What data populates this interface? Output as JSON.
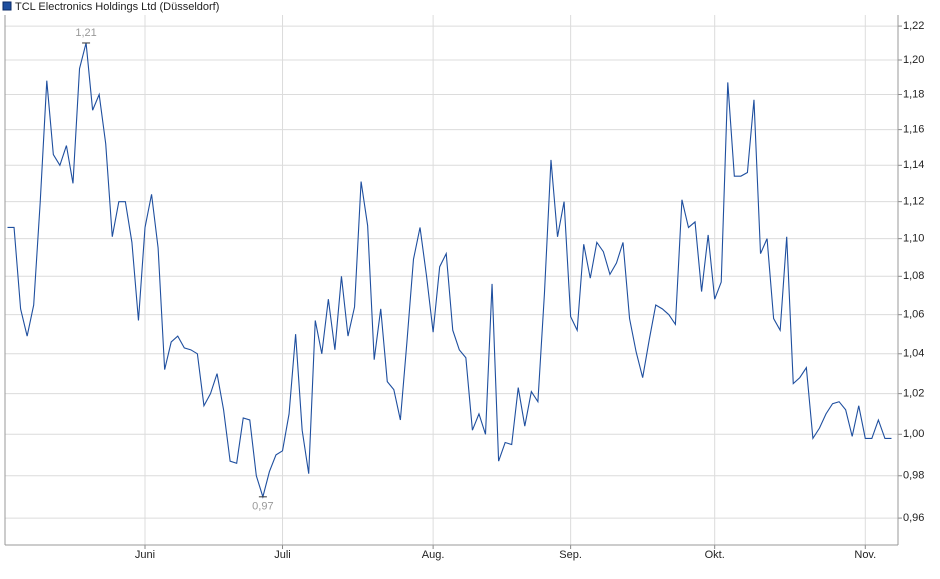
{
  "chart_data": {
    "type": "line",
    "legend_label": "TCL Electronics Holdings Ltd (Düsseldorf)",
    "log_scale": true,
    "grid": true,
    "legend_position": "top-left",
    "categories": [
      null,
      null,
      null,
      null,
      null,
      null,
      null,
      null,
      null,
      null,
      null,
      null,
      null,
      null,
      null,
      null,
      null,
      null,
      null,
      null,
      null,
      "Juni",
      null,
      null,
      null,
      null,
      null,
      null,
      null,
      null,
      null,
      null,
      null,
      null,
      null,
      null,
      null,
      null,
      null,
      null,
      null,
      null,
      "Juli",
      null,
      null,
      null,
      null,
      null,
      null,
      null,
      null,
      null,
      null,
      null,
      null,
      null,
      null,
      null,
      null,
      null,
      null,
      null,
      null,
      null,
      null,
      "Aug.",
      null,
      null,
      null,
      null,
      null,
      null,
      null,
      null,
      null,
      null,
      null,
      null,
      null,
      null,
      null,
      null,
      null,
      null,
      null,
      null,
      "Sep.",
      null,
      null,
      null,
      null,
      null,
      null,
      null,
      null,
      null,
      null,
      null,
      null,
      null,
      null,
      null,
      null,
      null,
      null,
      null,
      null,
      null,
      "Okt.",
      null,
      null,
      null,
      null,
      null,
      null,
      null,
      null,
      null,
      null,
      null,
      null,
      null,
      null,
      null,
      null,
      null,
      null,
      null,
      null,
      null,
      null,
      "Nov.",
      null,
      null,
      null,
      null
    ],
    "series": [
      {
        "color": "#1f4f9f",
        "values": [
          1.106,
          1.106,
          1.063,
          1.049,
          1.065,
          1.12,
          1.188,
          1.146,
          1.14,
          1.151,
          1.13,
          1.195,
          1.21,
          1.171,
          1.18,
          1.152,
          1.101,
          1.12,
          1.12,
          1.098,
          1.057,
          1.106,
          1.124,
          1.095,
          1.032,
          1.046,
          1.049,
          1.043,
          1.042,
          1.04,
          1.014,
          1.02,
          1.03,
          1.012,
          0.987,
          0.986,
          1.008,
          1.007,
          0.98,
          0.97,
          0.982,
          0.99,
          0.992,
          1.01,
          1.05,
          1.002,
          0.981,
          1.057,
          1.04,
          1.068,
          1.042,
          1.08,
          1.049,
          1.064,
          1.131,
          1.107,
          1.037,
          1.063,
          1.026,
          1.022,
          1.007,
          1.046,
          1.089,
          1.106,
          1.08,
          1.051,
          1.085,
          1.092,
          1.052,
          1.042,
          1.038,
          1.002,
          1.01,
          1.0,
          1.076,
          0.987,
          0.996,
          0.995,
          1.023,
          1.004,
          1.021,
          1.016,
          1.071,
          1.143,
          1.101,
          1.12,
          1.059,
          1.052,
          1.097,
          1.079,
          1.098,
          1.093,
          1.081,
          1.087,
          1.098,
          1.058,
          1.041,
          1.028,
          1.047,
          1.065,
          1.063,
          1.06,
          1.055,
          1.121,
          1.106,
          1.109,
          1.072,
          1.102,
          1.068,
          1.077,
          1.187,
          1.134,
          1.134,
          1.136,
          1.177,
          1.092,
          1.1,
          1.058,
          1.052,
          1.101,
          1.025,
          1.028,
          1.033,
          0.998,
          1.003,
          1.01,
          1.015,
          1.016,
          1.012,
          0.999,
          1.014,
          0.998,
          0.998,
          1.007,
          0.998,
          0.998
        ],
        "value_labels": [
          null,
          null,
          null,
          null,
          null,
          null,
          null,
          null,
          null,
          null,
          null,
          null,
          "1,21",
          null,
          null,
          null,
          null,
          null,
          null,
          null,
          null,
          null,
          null,
          null,
          null,
          null,
          null,
          null,
          null,
          null,
          null,
          null,
          null,
          null,
          null,
          null,
          null,
          null,
          null,
          "0,97",
          null,
          null,
          null,
          null,
          null,
          null,
          null,
          null,
          null,
          null,
          null,
          null,
          null,
          null,
          null,
          null,
          null,
          null,
          null,
          null,
          null,
          null,
          null,
          null,
          null,
          null,
          null,
          null,
          null,
          null,
          null,
          null,
          null,
          null,
          null,
          null,
          null,
          null,
          null,
          null,
          null,
          null,
          null,
          null,
          null,
          null,
          null,
          null,
          null,
          null,
          null,
          null,
          null,
          null,
          null,
          null,
          null,
          null,
          null,
          null,
          null,
          null,
          null,
          null,
          null,
          null,
          null,
          null,
          null,
          null,
          null,
          null,
          null,
          null,
          null,
          null,
          null,
          null,
          null,
          null,
          null,
          null,
          null,
          null,
          null,
          null,
          null,
          null,
          null,
          null,
          null,
          null,
          null,
          null,
          null,
          null
        ]
      }
    ],
    "ylim": [
      0.9475,
      1.2266
    ],
    "yticks": [
      {
        "value": 0.96,
        "label": "0,96"
      },
      {
        "value": 0.98,
        "label": "0,98"
      },
      {
        "value": 1.0,
        "label": "1,00"
      },
      {
        "value": 1.02,
        "label": "1,02"
      },
      {
        "value": 1.04,
        "label": "1,04"
      },
      {
        "value": 1.06,
        "label": "1,06"
      },
      {
        "value": 1.08,
        "label": "1,08"
      },
      {
        "value": 1.1,
        "label": "1,10"
      },
      {
        "value": 1.12,
        "label": "1,12"
      },
      {
        "value": 1.14,
        "label": "1,14"
      },
      {
        "value": 1.16,
        "label": "1,16"
      },
      {
        "value": 1.18,
        "label": "1,18"
      },
      {
        "value": 1.2,
        "label": "1,20"
      },
      {
        "value": 1.22,
        "label": "1,22"
      }
    ]
  }
}
